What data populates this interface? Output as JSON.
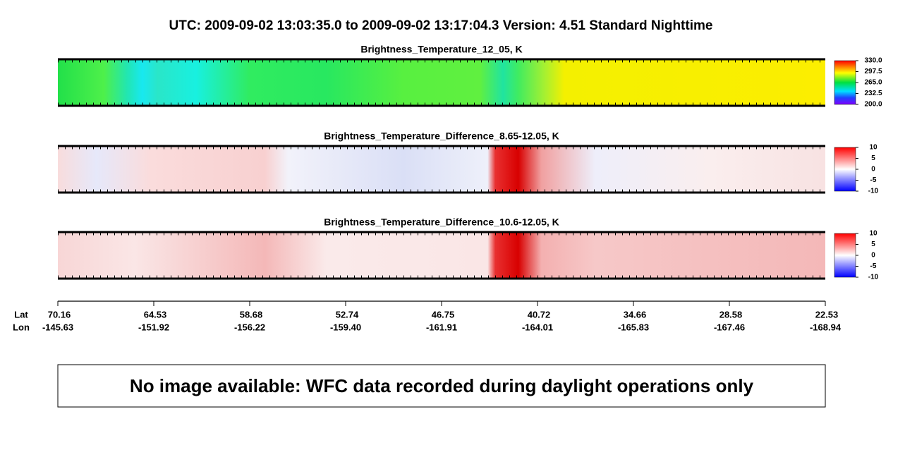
{
  "header": {
    "title": "UTC:  2009-09-02   13:03:35.0  to  2009-09-02   13:17:04.3    Version: 4.51  Standard Nighttime"
  },
  "panels": [
    {
      "title": "Brightness_Temperature_12_05, K",
      "colorbar_range": [
        200,
        330
      ],
      "colorbar_ticks": [
        {
          "value": 330,
          "label": "330.0"
        },
        {
          "value": 297.5,
          "label": "297.5"
        },
        {
          "value": 265,
          "label": "265.0"
        },
        {
          "value": 232.5,
          "label": "232.5"
        },
        {
          "value": 200,
          "label": "200.0"
        }
      ]
    },
    {
      "title": "Brightness_Temperature_Difference_8.65-12.05, K",
      "colorbar_range": [
        -10,
        10
      ],
      "colorbar_ticks": [
        10,
        5,
        0,
        -5,
        -10
      ]
    },
    {
      "title": "Brightness_Temperature_Difference_10.6-12.05, K",
      "colorbar_range": [
        -10,
        10
      ],
      "colorbar_ticks": [
        10,
        5,
        0,
        -5,
        -10
      ]
    }
  ],
  "x_axis": {
    "row_labels": [
      "Lat",
      "Lon"
    ],
    "lat": [
      "70.16",
      "64.53",
      "58.68",
      "52.74",
      "46.75",
      "40.72",
      "34.66",
      "28.58",
      "22.53"
    ],
    "lon": [
      "-145.63",
      "-151.92",
      "-156.22",
      "-159.40",
      "-161.91",
      "-164.01",
      "-165.83",
      "-167.46",
      "-168.94"
    ]
  },
  "notice": {
    "text": "No image available: WFC data recorded during daylight operations only"
  }
}
